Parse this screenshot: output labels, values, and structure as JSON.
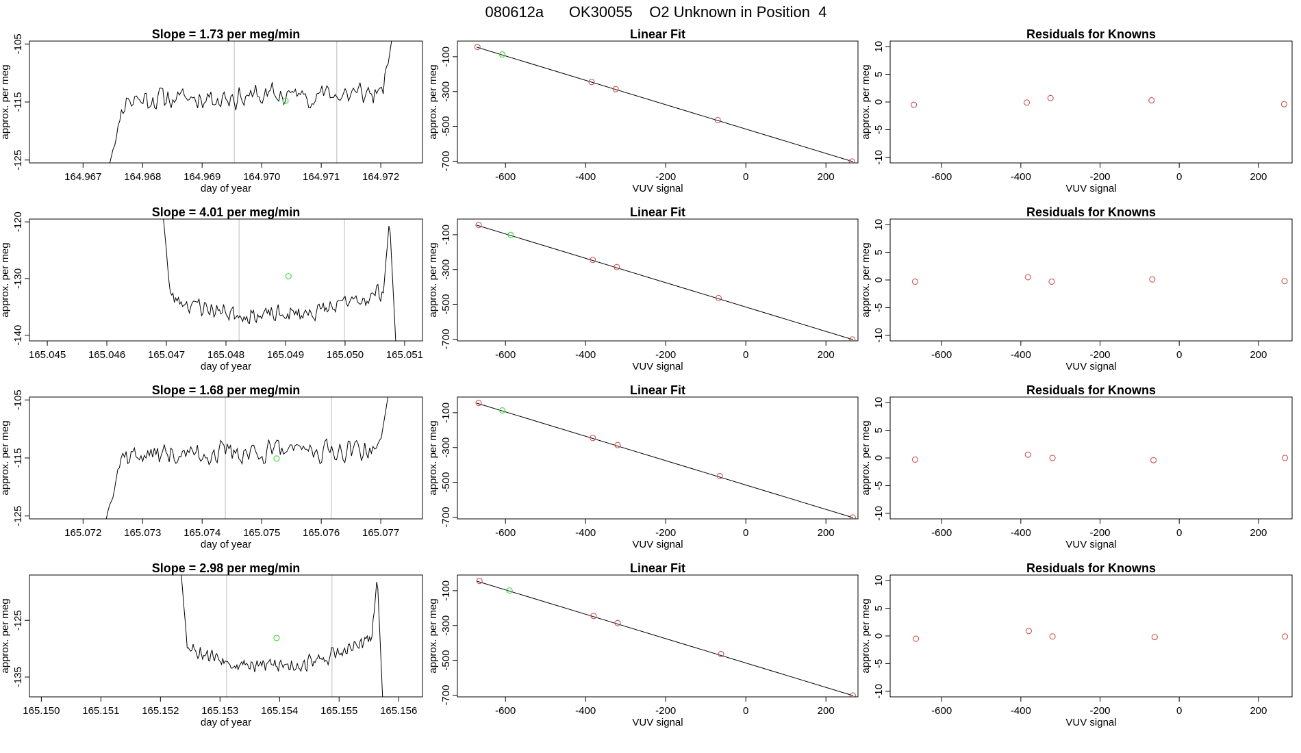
{
  "title": "080612a      OK30055    O2 Unknown in Position  4",
  "colors": {
    "known": "#d0504b",
    "unknown": "#33dd33",
    "trace": "#000000",
    "marker_line": "#c8c8c8"
  },
  "labels": {
    "approx": "approx. per meg",
    "day": "day of year",
    "vuv": "VUV signal",
    "linear_fit": "Linear Fit",
    "residuals": "Residuals for Knowns"
  },
  "chart_data": [
    {
      "type": "line",
      "panel": "trace",
      "row": 1,
      "title": "Slope =  1.73  per meg/min",
      "xlabel": "day of year",
      "ylabel": "approx. per meg",
      "xlim": [
        164.9661,
        164.9727
      ],
      "ylim": [
        -125.5,
        -104.5
      ],
      "xticks": [
        "164.967",
        "164.968",
        "164.969",
        "164.970",
        "164.971",
        "164.972"
      ],
      "yticks": [
        "-105",
        "-115",
        "-125"
      ],
      "vlines": [
        164.96954,
        164.97126
      ],
      "trace": {
        "x0": 164.96745,
        "x1": 164.97218,
        "base": -114,
        "wiggle": 2.6,
        "start_drop": -125.5,
        "end_rise": -104.5,
        "lead": 0.05,
        "tail": 0.03,
        "curve": 0,
        "seed": 11
      },
      "unknown_points": [
        {
          "x": 164.9704,
          "y": -114.8
        }
      ]
    },
    {
      "type": "scatter",
      "panel": "fit",
      "row": 1,
      "title": "Linear Fit",
      "xlabel": "VUV signal",
      "ylabel": "approx. per meg",
      "xlim": [
        -720,
        280
      ],
      "ylim": [
        -710,
        -10
      ],
      "xticks": [
        "-600",
        "-400",
        "-200",
        "0",
        "200"
      ],
      "yticks": [
        "-100",
        "-300",
        "-500",
        "-700"
      ],
      "fit_line": {
        "x": [
          -672,
          268
        ],
        "y": [
          -45,
          -703
        ]
      },
      "known_points": [
        {
          "x": -670,
          "y": -44
        },
        {
          "x": -385,
          "y": -245
        },
        {
          "x": -325,
          "y": -286
        },
        {
          "x": -70,
          "y": -464
        },
        {
          "x": 265,
          "y": -702
        }
      ],
      "unknown_points": [
        {
          "x": -608,
          "y": -87
        }
      ]
    },
    {
      "type": "scatter",
      "panel": "resid",
      "row": 1,
      "title": "Residuals for Knowns",
      "xlabel": "VUV signal",
      "ylabel": "approx. per meg",
      "xlim": [
        -730,
        285
      ],
      "ylim": [
        -11,
        11
      ],
      "xticks": [
        "-600",
        "-400",
        "-200",
        "0",
        "200"
      ],
      "yticks": [
        "-10",
        "-5",
        "0",
        "5",
        "10"
      ],
      "known_points": [
        {
          "x": -670,
          "y": -0.5
        },
        {
          "x": -385,
          "y": -0.1
        },
        {
          "x": -325,
          "y": 0.7
        },
        {
          "x": -70,
          "y": 0.3
        },
        {
          "x": 265,
          "y": -0.4
        }
      ]
    },
    {
      "type": "line",
      "panel": "trace",
      "row": 2,
      "title": "Slope =  4.01  per meg/min",
      "xlabel": "day of year",
      "ylabel": "approx. per meg",
      "xlim": [
        165.0447,
        165.0513
      ],
      "ylim": [
        -141,
        -119.5
      ],
      "xticks": [
        "165.045",
        "165.046",
        "165.047",
        "165.048",
        "165.049",
        "165.050",
        "165.051"
      ],
      "yticks": [
        "-120",
        "-130",
        "-140"
      ],
      "vlines": [
        165.04822,
        165.04999
      ],
      "trace": {
        "x0": 165.04695,
        "x1": 165.05085,
        "base": -131,
        "wiggle": 2.0,
        "start_drop": -119.5,
        "end_rise": -119.5,
        "final_drop": -141,
        "lead": 0.03,
        "tail": 0.05,
        "curve": 5.5,
        "seed": 23
      },
      "unknown_points": [
        {
          "x": 165.04905,
          "y": -129.6
        }
      ]
    },
    {
      "type": "scatter",
      "panel": "fit",
      "row": 2,
      "title": "Linear Fit",
      "xlabel": "VUV signal",
      "ylabel": "approx. per meg",
      "xlim": [
        -720,
        280
      ],
      "ylim": [
        -710,
        -10
      ],
      "xticks": [
        "-600",
        "-400",
        "-200",
        "0",
        "200"
      ],
      "yticks": [
        "-100",
        "-300",
        "-500",
        "-700"
      ],
      "fit_line": {
        "x": [
          -672,
          268
        ],
        "y": [
          -45,
          -703
        ]
      },
      "known_points": [
        {
          "x": -667,
          "y": -44
        },
        {
          "x": -382,
          "y": -245
        },
        {
          "x": -322,
          "y": -286
        },
        {
          "x": -68,
          "y": -464
        },
        {
          "x": 266,
          "y": -702
        }
      ],
      "unknown_points": [
        {
          "x": -587,
          "y": -101
        }
      ]
    },
    {
      "type": "scatter",
      "panel": "resid",
      "row": 2,
      "title": "Residuals for Knowns",
      "xlabel": "VUV signal",
      "ylabel": "approx. per meg",
      "xlim": [
        -730,
        285
      ],
      "ylim": [
        -11,
        11
      ],
      "xticks": [
        "-600",
        "-400",
        "-200",
        "0",
        "200"
      ],
      "yticks": [
        "-10",
        "-5",
        "0",
        "5",
        "10"
      ],
      "known_points": [
        {
          "x": -667,
          "y": -0.3
        },
        {
          "x": -382,
          "y": 0.5
        },
        {
          "x": -322,
          "y": -0.3
        },
        {
          "x": -68,
          "y": 0.1
        },
        {
          "x": 266,
          "y": -0.2
        }
      ]
    },
    {
      "type": "line",
      "panel": "trace",
      "row": 3,
      "title": "Slope =  1.68  per meg/min",
      "xlabel": "day of year",
      "ylabel": "approx. per meg",
      "xlim": [
        165.0711,
        165.0777
      ],
      "ylim": [
        -125.5,
        -104.5
      ],
      "xticks": [
        "165.072",
        "165.073",
        "165.074",
        "165.075",
        "165.076",
        "165.077"
      ],
      "yticks": [
        "-105",
        "-115",
        "-125"
      ],
      "vlines": [
        165.07439,
        165.07617
      ],
      "trace": {
        "x0": 165.07239,
        "x1": 165.07712,
        "base": -114,
        "wiggle": 2.5,
        "start_drop": -125.5,
        "end_rise": -104.5,
        "lead": 0.05,
        "tail": 0.03,
        "curve": 0,
        "seed": 37
      },
      "unknown_points": [
        {
          "x": 165.07525,
          "y": -115.1
        }
      ]
    },
    {
      "type": "scatter",
      "panel": "fit",
      "row": 3,
      "title": "Linear Fit",
      "xlabel": "VUV signal",
      "ylabel": "approx. per meg",
      "xlim": [
        -720,
        280
      ],
      "ylim": [
        -710,
        -10
      ],
      "xticks": [
        "-600",
        "-400",
        "-200",
        "0",
        "200"
      ],
      "yticks": [
        "-100",
        "-300",
        "-500",
        "-700"
      ],
      "fit_line": {
        "x": [
          -672,
          268
        ],
        "y": [
          -45,
          -703
        ]
      },
      "known_points": [
        {
          "x": -667,
          "y": -44
        },
        {
          "x": -382,
          "y": -245
        },
        {
          "x": -320,
          "y": -286
        },
        {
          "x": -65,
          "y": -464
        },
        {
          "x": 267,
          "y": -702
        }
      ],
      "unknown_points": [
        {
          "x": -608,
          "y": -87
        }
      ]
    },
    {
      "type": "scatter",
      "panel": "resid",
      "row": 3,
      "title": "Residuals for Knowns",
      "xlabel": "VUV signal",
      "ylabel": "approx. per meg",
      "xlim": [
        -730,
        285
      ],
      "ylim": [
        -11,
        11
      ],
      "xticks": [
        "-600",
        "-400",
        "-200",
        "0",
        "200"
      ],
      "yticks": [
        "-10",
        "-5",
        "0",
        "5",
        "10"
      ],
      "known_points": [
        {
          "x": -667,
          "y": -0.3
        },
        {
          "x": -382,
          "y": 0.6
        },
        {
          "x": -320,
          "y": 0.0
        },
        {
          "x": -65,
          "y": -0.4
        },
        {
          "x": 267,
          "y": 0.0
        }
      ]
    },
    {
      "type": "line",
      "panel": "trace",
      "row": 4,
      "title": "Slope =  2.98  per meg/min",
      "xlabel": "day of year",
      "ylabel": "approx. per meg",
      "xlim": [
        165.1498,
        165.1564
      ],
      "ylim": [
        -138.5,
        -117
      ],
      "xticks": [
        "165.150",
        "165.151",
        "165.152",
        "165.153",
        "165.154",
        "165.155",
        "165.156"
      ],
      "yticks": [
        "-125",
        "-135"
      ],
      "vlines": [
        165.15311,
        165.15488
      ],
      "trace": {
        "x0": 165.15235,
        "x1": 165.15573,
        "base": -127,
        "wiggle": 1.8,
        "start_drop": -117,
        "end_rise": -117,
        "final_drop": -138.5,
        "lead": 0.03,
        "tail": 0.05,
        "curve": 6.0,
        "seed": 53
      },
      "unknown_points": [
        {
          "x": 165.15395,
          "y": -128.1
        }
      ]
    },
    {
      "type": "scatter",
      "panel": "fit",
      "row": 4,
      "title": "Linear Fit",
      "xlabel": "VUV signal",
      "ylabel": "approx. per meg",
      "xlim": [
        -720,
        280
      ],
      "ylim": [
        -710,
        -10
      ],
      "xticks": [
        "-600",
        "-400",
        "-200",
        "0",
        "200"
      ],
      "yticks": [
        "-100",
        "-300",
        "-500",
        "-700"
      ],
      "fit_line": {
        "x": [
          -672,
          268
        ],
        "y": [
          -45,
          -703
        ]
      },
      "known_points": [
        {
          "x": -665,
          "y": -44
        },
        {
          "x": -380,
          "y": -245
        },
        {
          "x": -320,
          "y": -286
        },
        {
          "x": -62,
          "y": -464
        },
        {
          "x": 267,
          "y": -702
        }
      ],
      "unknown_points": [
        {
          "x": -590,
          "y": -99
        }
      ]
    },
    {
      "type": "scatter",
      "panel": "resid",
      "row": 4,
      "title": "Residuals for Knowns",
      "xlabel": "VUV signal",
      "ylabel": "approx. per meg",
      "xlim": [
        -730,
        285
      ],
      "ylim": [
        -11,
        11
      ],
      "xticks": [
        "-600",
        "-400",
        "-200",
        "0",
        "200"
      ],
      "yticks": [
        "-10",
        "-5",
        "0",
        "5",
        "10"
      ],
      "known_points": [
        {
          "x": -665,
          "y": -0.5
        },
        {
          "x": -380,
          "y": 0.9
        },
        {
          "x": -320,
          "y": -0.1
        },
        {
          "x": -62,
          "y": -0.2
        },
        {
          "x": 267,
          "y": -0.1
        }
      ]
    }
  ]
}
